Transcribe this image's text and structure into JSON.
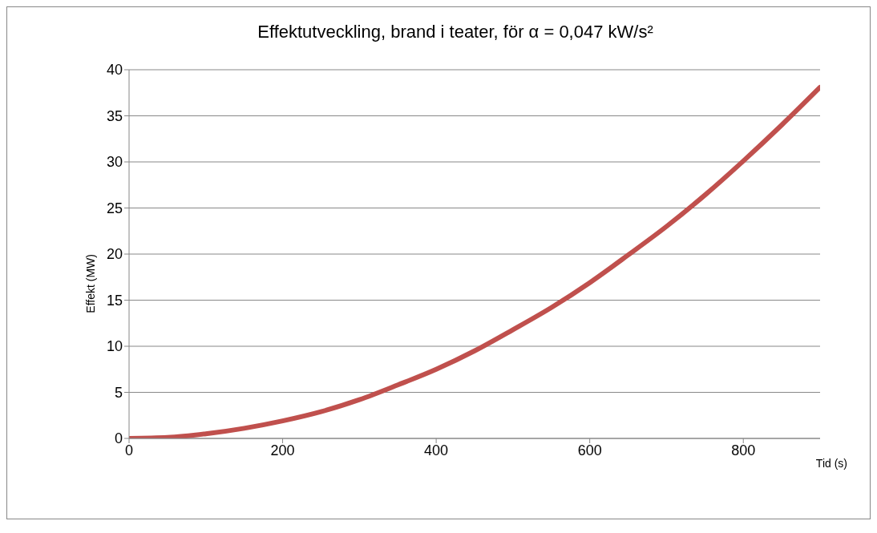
{
  "chart_data": {
    "type": "line",
    "title": "Effektutveckling, brand i teater, för α = 0,047 kW/s²",
    "xlabel": "Tid (s)",
    "ylabel": "Effekt (MW)",
    "x": [
      0,
      50,
      100,
      150,
      200,
      250,
      300,
      350,
      400,
      450,
      500,
      550,
      600,
      650,
      700,
      750,
      800,
      850,
      900
    ],
    "series": [
      {
        "color": "#c0504d",
        "values": [
          0,
          0.1,
          0.5,
          1.1,
          1.9,
          2.9,
          4.2,
          5.8,
          7.5,
          9.5,
          11.8,
          14.2,
          16.9,
          19.9,
          23.0,
          26.4,
          30.1,
          34.0,
          38.1
        ]
      }
    ],
    "xlim": [
      0,
      900
    ],
    "xticks": [
      0,
      200,
      400,
      600,
      800
    ],
    "ylim": [
      0,
      40
    ],
    "yticks": [
      0,
      5,
      10,
      15,
      20,
      25,
      30,
      35,
      40
    ],
    "grid": "y",
    "legend": false,
    "marker": "none",
    "line_style": "solid"
  }
}
